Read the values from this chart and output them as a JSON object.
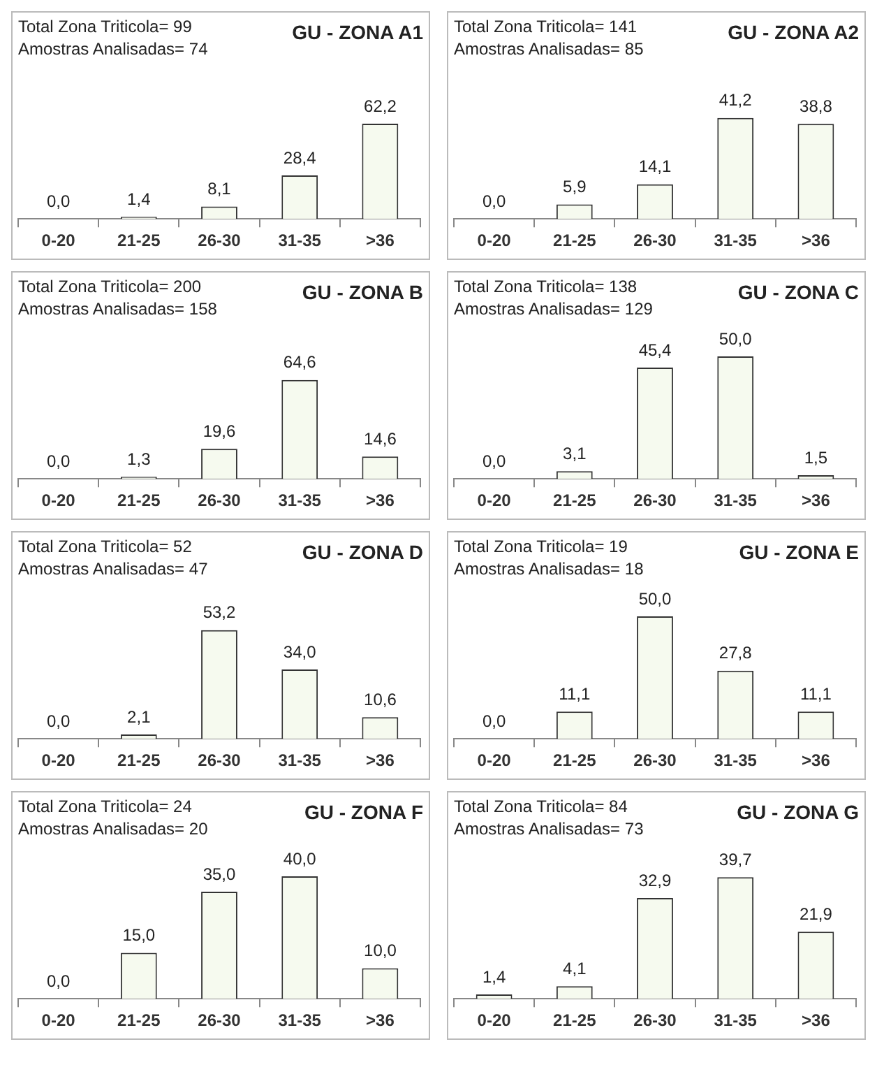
{
  "chart_data": [
    {
      "type": "bar",
      "title": "GU - ZONA A1",
      "annotations": [
        "Total Zona Triticola= 99",
        "Amostras Analisadas= 74"
      ],
      "categories": [
        "0-20",
        "21-25",
        "26-30",
        "31-35",
        ">36"
      ],
      "values": [
        0.0,
        1.4,
        8.1,
        28.4,
        62.2
      ],
      "value_labels": [
        "0,0",
        "1,4",
        "8,1",
        "28,4",
        "62,2"
      ],
      "color": "#f6faef"
    },
    {
      "type": "bar",
      "title": "GU - ZONA A2",
      "annotations": [
        "Total Zona Triticola= 141",
        "Amostras Analisadas= 85"
      ],
      "categories": [
        "0-20",
        "21-25",
        "26-30",
        "31-35",
        ">36"
      ],
      "values": [
        0.0,
        5.9,
        14.1,
        41.2,
        38.8
      ],
      "value_labels": [
        "0,0",
        "5,9",
        "14,1",
        "41,2",
        "38,8"
      ],
      "color": "#f6faef"
    },
    {
      "type": "bar",
      "title": "GU - ZONA B",
      "annotations": [
        "Total Zona Triticola= 200",
        "Amostras Analisadas= 158"
      ],
      "categories": [
        "0-20",
        "21-25",
        "26-30",
        "31-35",
        ">36"
      ],
      "values": [
        0.0,
        1.3,
        19.6,
        64.6,
        14.6
      ],
      "value_labels": [
        "0,0",
        "1,3",
        "19,6",
        "64,6",
        "14,6"
      ],
      "color": "#f6faef"
    },
    {
      "type": "bar",
      "title": "GU - ZONA C",
      "annotations": [
        "Total Zona Triticola= 138",
        "Amostras Analisadas= 129"
      ],
      "categories": [
        "0-20",
        "21-25",
        "26-30",
        "31-35",
        ">36"
      ],
      "values": [
        0.0,
        3.1,
        45.4,
        50.0,
        1.5
      ],
      "value_labels": [
        "0,0",
        "3,1",
        "45,4",
        "50,0",
        "1,5"
      ],
      "color": "#f6faef"
    },
    {
      "type": "bar",
      "title": "GU - ZONA D",
      "annotations": [
        "Total Zona Triticola= 52",
        "Amostras Analisadas= 47"
      ],
      "categories": [
        "0-20",
        "21-25",
        "26-30",
        "31-35",
        ">36"
      ],
      "values": [
        0.0,
        2.1,
        53.2,
        34.0,
        10.6
      ],
      "value_labels": [
        "0,0",
        "2,1",
        "53,2",
        "34,0",
        "10,6"
      ],
      "color": "#f6faef"
    },
    {
      "type": "bar",
      "title": "GU - ZONA E",
      "annotations": [
        "Total Zona Triticola= 19",
        "Amostras Analisadas= 18"
      ],
      "categories": [
        "0-20",
        "21-25",
        "26-30",
        "31-35",
        ">36"
      ],
      "values": [
        0.0,
        11.1,
        50.0,
        27.8,
        11.1
      ],
      "value_labels": [
        "0,0",
        "11,1",
        "50,0",
        "27,8",
        "11,1"
      ],
      "color": "#f6faef"
    },
    {
      "type": "bar",
      "title": "GU - ZONA F",
      "annotations": [
        "Total Zona Triticola= 24",
        "Amostras Analisadas= 20"
      ],
      "categories": [
        "0-20",
        "21-25",
        "26-30",
        "31-35",
        ">36"
      ],
      "values": [
        0.0,
        15.0,
        35.0,
        40.0,
        10.0
      ],
      "value_labels": [
        "0,0",
        "15,0",
        "35,0",
        "40,0",
        "10,0"
      ],
      "color": "#f6faef"
    },
    {
      "type": "bar",
      "title": "GU - ZONA G",
      "annotations": [
        "Total Zona Triticola= 84",
        "Amostras Analisadas= 73"
      ],
      "categories": [
        "0-20",
        "21-25",
        "26-30",
        "31-35",
        ">36"
      ],
      "values": [
        1.4,
        4.1,
        32.9,
        39.7,
        21.9
      ],
      "value_labels": [
        "1,4",
        "4,1",
        "32,9",
        "39,7",
        "21,9"
      ],
      "color": "#f6faef"
    }
  ]
}
